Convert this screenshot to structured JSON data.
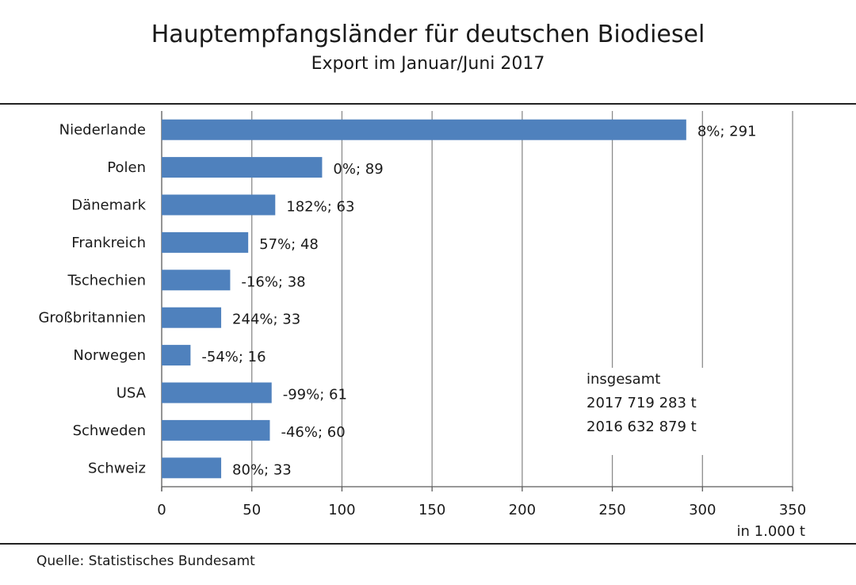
{
  "title": "Hauptempfangsländer  für deutschen Biodiesel",
  "subtitle": "Export im Januar/Juni  2017",
  "source": "Quelle: Statistisches Bundesamt",
  "chart_data": {
    "type": "bar",
    "orientation": "horizontal",
    "categories": [
      "Niederlande",
      "Polen",
      "Dänemark",
      "Frankreich",
      "Tschechien",
      "Großbritannien",
      "Norwegen",
      "USA",
      "Schweden",
      "Schweiz"
    ],
    "values": [
      291,
      89,
      63,
      48,
      38,
      33,
      16,
      61,
      60,
      33
    ],
    "data_labels": [
      "8%;  291",
      "0%;  89",
      "182%;  63",
      "57%;  48",
      "-16%;  38",
      "244%;  33",
      "-54%;  16",
      "-99%;  61",
      "-46%;  60",
      "80%;  33"
    ],
    "xlim": [
      0,
      350
    ],
    "xticks": [
      0,
      50,
      100,
      150,
      200,
      250,
      300,
      350
    ],
    "xlabel": "in 1.000  t",
    "grid": true,
    "bar_color": "#4f81bd",
    "annotation": {
      "heading": "insgesamt",
      "lines": [
        "2017   719  283  t",
        "2016   632  879  t"
      ]
    }
  }
}
